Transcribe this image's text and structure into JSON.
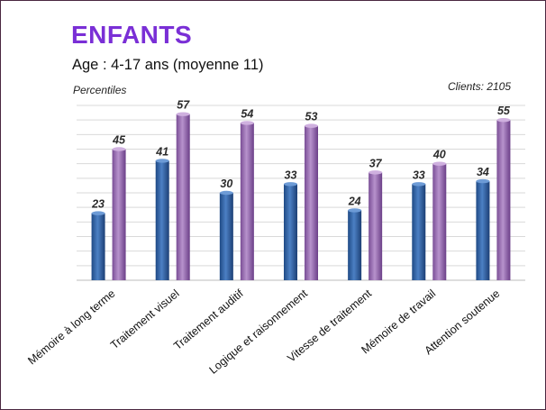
{
  "header": {
    "title": "ENFANTS",
    "subtitle": "Age : 4-17 ans (moyenne 11)",
    "ylabel": "Percentiles",
    "clients": "Clients: 2105"
  },
  "colors": {
    "title": "#7a2fd6",
    "series_1": "#2f5f9e",
    "series_2": "#9b6fb3"
  },
  "chart_data": {
    "type": "bar",
    "title": "ENFANTS",
    "subtitle": "Age : 4-17 ans (moyenne 11)",
    "ylabel": "Percentiles",
    "xlabel": "",
    "ylim": [
      0,
      60
    ],
    "grid": true,
    "legend": "none",
    "categories": [
      "Mémoire à long terme",
      "Traitement visuel",
      "Traitement auditif",
      "Logique et raisonnement",
      "Vitesse de traitement",
      "Mémoire de travail",
      "Attention soutenue"
    ],
    "series": [
      {
        "values": [
          23,
          41,
          30,
          33,
          24,
          33,
          34
        ]
      },
      {
        "values": [
          45,
          57,
          54,
          53,
          37,
          40,
          55
        ]
      }
    ]
  }
}
